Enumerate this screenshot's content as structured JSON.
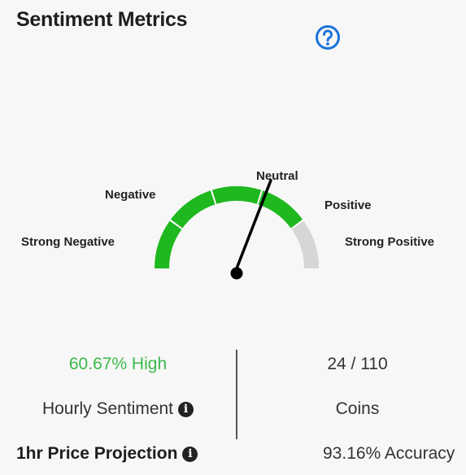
{
  "header": {
    "title": "Sentiment Metrics",
    "help_icon": "question-circle-icon",
    "help_color": "#1a73d9"
  },
  "gauge": {
    "labels": {
      "strong_negative": "Strong Negative",
      "negative": "Negative",
      "neutral": "Neutral",
      "positive": "Positive",
      "strong_positive": "Strong Positive"
    },
    "value_percent": 60.67,
    "filled_segments": 4,
    "total_segments": 5,
    "fill_color": "#1fb81f",
    "empty_color": "#d6d6d6"
  },
  "stats": {
    "sentiment_value": "60.67% High",
    "sentiment_label": "Hourly Sentiment",
    "coins_value": "24 / 110",
    "coins_label": "Coins",
    "projection_label": "1hr Price Projection",
    "accuracy_value": "93.16% Accuracy",
    "info_icon": "info-circle-icon",
    "positive_color": "#3cb94a"
  }
}
